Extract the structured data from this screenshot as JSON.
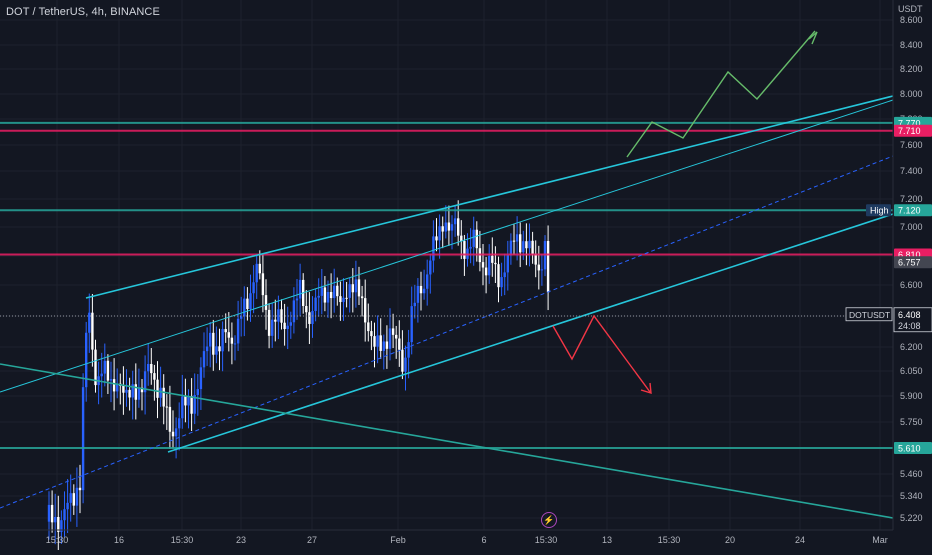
{
  "chart_data": {
    "type": "candlestick",
    "title": "DOT / TetherUS, 4h, BINANCE",
    "currency": "USDT",
    "symbol": "DOTUSDT",
    "last_price": "6.408",
    "countdown": "24:08",
    "ylim": [
      5.1,
      8.7
    ],
    "y_ticks": [
      "8.600",
      "8.400",
      "8.200",
      "8.000",
      "7.800",
      "7.600",
      "7.400",
      "7.200",
      "7.000",
      "6.800",
      "6.600",
      "6.400",
      "6.200",
      "6.050",
      "5.900",
      "5.750",
      "5.610",
      "5.460",
      "5.340",
      "5.220"
    ],
    "x_ticks": [
      "15:30",
      "16",
      "15:30",
      "23",
      "27",
      "Feb",
      "6",
      "15:30",
      "13",
      "15:30",
      "20",
      "24",
      "Mar"
    ],
    "horizontal_levels": [
      {
        "label": "7.770",
        "value": 7.77,
        "color": "#26a69a"
      },
      {
        "label": "7.710",
        "value": 7.71,
        "color": "#e91e63"
      },
      {
        "label": "7.120",
        "value": 7.12,
        "color": "#26a69a",
        "tag": "High"
      },
      {
        "label": "6.810",
        "value": 6.81,
        "color": "#e91e63"
      },
      {
        "label": "6.757",
        "value": 6.757,
        "color": "#434651"
      },
      {
        "label": "5.610",
        "value": 5.61,
        "color": "#26a69a"
      }
    ],
    "candles": [],
    "colors": {
      "up": "#2962ff",
      "down": "#ffffff",
      "channel": "#26c6da",
      "support": "#26a69a",
      "resistance": "#e91e63",
      "bull_path": "#66bb6a",
      "bear_path": "#f23645",
      "background": "#131722"
    }
  }
}
